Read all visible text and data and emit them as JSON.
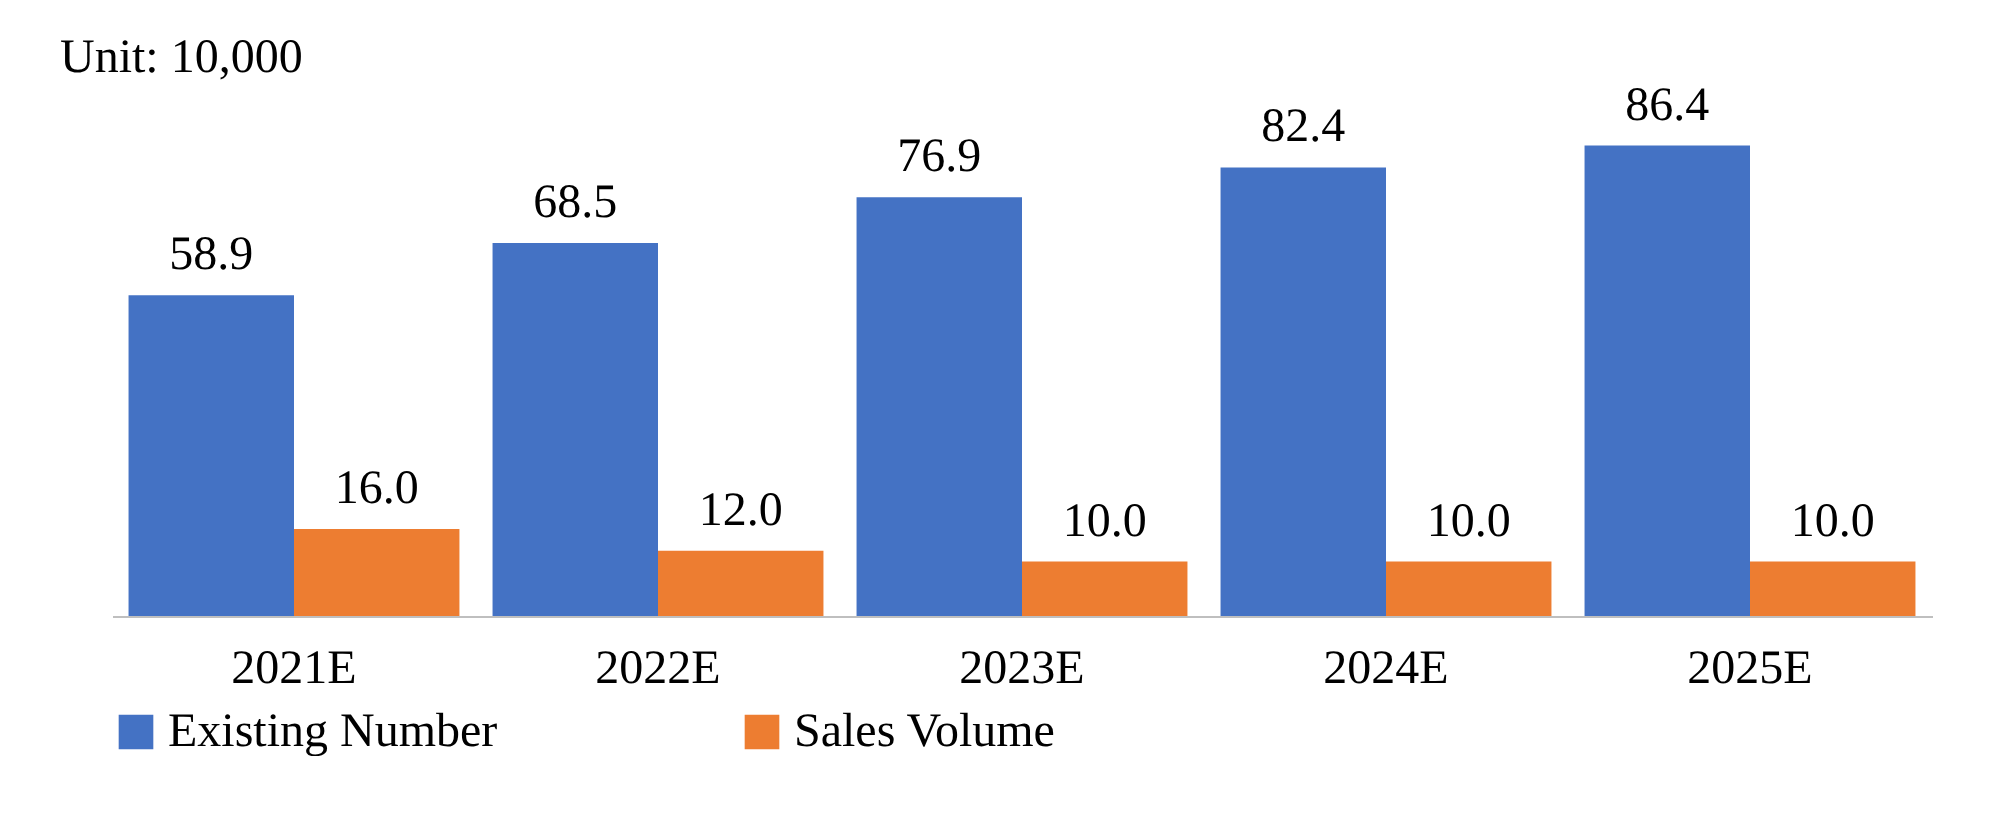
{
  "chart_data": {
    "type": "bar",
    "annotations": [
      "Unit: 10,000"
    ],
    "categories": [
      "2021E",
      "2022E",
      "2023E",
      "2024E",
      "2025E"
    ],
    "series": [
      {
        "name": "Existing Number",
        "color": "#4472c4",
        "values": [
          58.9,
          68.5,
          76.9,
          82.4,
          86.4
        ],
        "value_labels": [
          "58.9",
          "68.5",
          "76.9",
          "82.4",
          "86.4"
        ]
      },
      {
        "name": "Sales Volume",
        "color": "#ed7d31",
        "values": [
          16.0,
          12.0,
          10.0,
          10.0,
          10.0
        ],
        "value_labels": [
          "16.0",
          "12.0",
          "10.0",
          "10.0",
          "10.0"
        ]
      }
    ],
    "legend": "bottom"
  }
}
